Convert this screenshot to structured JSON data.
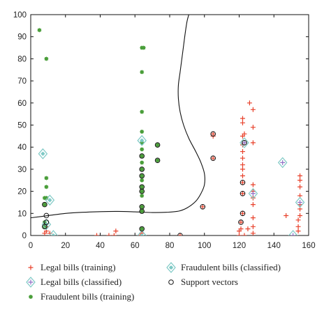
{
  "chart_data": {
    "type": "scatter",
    "title": "",
    "xlabel": "",
    "ylabel": "",
    "xlim": [
      0,
      160
    ],
    "ylim": [
      0,
      100
    ],
    "x_ticks": [
      0,
      20,
      40,
      60,
      80,
      100,
      120,
      140,
      160
    ],
    "y_ticks": [
      0,
      10,
      20,
      30,
      40,
      50,
      60,
      70,
      80,
      90,
      100
    ],
    "grid": false,
    "legend_placement": "bottom",
    "colors": {
      "legal_training": "#e8402a",
      "legal_classified": "#8f6fc6",
      "fraud_training": "#4a9e3a",
      "fraud_classified": "#7ec9c5",
      "support_vectors": "#111111",
      "boundary": "#111111"
    },
    "legend": [
      {
        "key": "legal_training",
        "marker": "plus",
        "label": "Legal bills (training)"
      },
      {
        "key": "legal_classified",
        "marker": "plus-diamond",
        "label": "Legal bills (classified)"
      },
      {
        "key": "fraud_training",
        "marker": "star",
        "label": "Fraudulent bills (training)"
      },
      {
        "key": "fraud_classified",
        "marker": "star-diamond",
        "label": "Fraudulent bills (classified)"
      },
      {
        "key": "support_vectors",
        "marker": "circle",
        "label": "Support vectors"
      }
    ],
    "series": [
      {
        "key": "legal_training",
        "marker": "plus",
        "points": [
          [
            8,
            1
          ],
          [
            9,
            2
          ],
          [
            9,
            4
          ],
          [
            11,
            1
          ],
          [
            38,
            0
          ],
          [
            45,
            0
          ],
          [
            48,
            0
          ],
          [
            49,
            2
          ],
          [
            63,
            0
          ],
          [
            64,
            1
          ],
          [
            86,
            0
          ],
          [
            99,
            13
          ],
          [
            105,
            35
          ],
          [
            105,
            45
          ],
          [
            105,
            46
          ],
          [
            120,
            0
          ],
          [
            120,
            2
          ],
          [
            121,
            3
          ],
          [
            121,
            6
          ],
          [
            122,
            10
          ],
          [
            122,
            19
          ],
          [
            122,
            24
          ],
          [
            122,
            27
          ],
          [
            122,
            30
          ],
          [
            122,
            32
          ],
          [
            122,
            35
          ],
          [
            122,
            38
          ],
          [
            122,
            41
          ],
          [
            122,
            45
          ],
          [
            122,
            51
          ],
          [
            122,
            53
          ],
          [
            123,
            0
          ],
          [
            123,
            46
          ],
          [
            125,
            3
          ],
          [
            126,
            60
          ],
          [
            128,
            1
          ],
          [
            128,
            4
          ],
          [
            128,
            8
          ],
          [
            128,
            14
          ],
          [
            128,
            17
          ],
          [
            128,
            20
          ],
          [
            128,
            23
          ],
          [
            128,
            42
          ],
          [
            128,
            49
          ],
          [
            128,
            57
          ],
          [
            147,
            9
          ],
          [
            154,
            2
          ],
          [
            154,
            4
          ],
          [
            154,
            7
          ],
          [
            155,
            9
          ],
          [
            155,
            12
          ],
          [
            155,
            14
          ],
          [
            155,
            18
          ],
          [
            155,
            22
          ],
          [
            155,
            25
          ],
          [
            155,
            27
          ]
        ]
      },
      {
        "key": "legal_classified",
        "marker": "plus-diamond",
        "points": [
          [
            123,
            42
          ],
          [
            128,
            19
          ],
          [
            145,
            33
          ],
          [
            151,
            0
          ],
          [
            155,
            15
          ]
        ]
      },
      {
        "key": "fraud_training",
        "marker": "star",
        "points": [
          [
            5,
            93
          ],
          [
            8,
            4
          ],
          [
            8,
            6
          ],
          [
            8,
            14
          ],
          [
            8,
            17
          ],
          [
            9,
            80
          ],
          [
            9,
            22
          ],
          [
            9,
            26
          ],
          [
            9,
            17
          ],
          [
            64,
            85
          ],
          [
            64,
            74
          ],
          [
            64,
            56
          ],
          [
            64,
            47
          ],
          [
            64,
            42
          ],
          [
            64,
            39
          ],
          [
            64,
            36
          ],
          [
            64,
            33
          ],
          [
            64,
            30
          ],
          [
            64,
            27
          ],
          [
            64,
            25
          ],
          [
            64,
            22
          ],
          [
            64,
            20
          ],
          [
            64,
            18
          ],
          [
            64,
            13
          ],
          [
            64,
            11
          ],
          [
            64,
            3
          ],
          [
            65,
            85
          ],
          [
            73,
            34
          ],
          [
            73,
            41
          ]
        ]
      },
      {
        "key": "fraud_classified",
        "marker": "star-diamond",
        "points": [
          [
            7,
            37
          ],
          [
            9,
            5
          ],
          [
            11,
            16
          ],
          [
            13,
            0
          ],
          [
            64,
            43
          ],
          [
            64,
            0
          ]
        ]
      },
      {
        "key": "support_vectors",
        "marker": "circle",
        "points": [
          [
            8,
            4
          ],
          [
            8,
            14
          ],
          [
            9,
            6
          ],
          [
            9,
            9
          ],
          [
            64,
            3
          ],
          [
            64,
            11
          ],
          [
            64,
            13
          ],
          [
            64,
            20
          ],
          [
            64,
            22
          ],
          [
            64,
            27
          ],
          [
            64,
            30
          ],
          [
            64,
            36
          ],
          [
            73,
            34
          ],
          [
            73,
            41
          ],
          [
            86,
            0
          ],
          [
            99,
            13
          ],
          [
            105,
            35
          ],
          [
            105,
            46
          ],
          [
            121,
            6
          ],
          [
            122,
            10
          ],
          [
            122,
            19
          ],
          [
            122,
            24
          ],
          [
            123,
            42
          ]
        ]
      }
    ],
    "decision_boundary": [
      [
        0,
        8
      ],
      [
        10,
        9
      ],
      [
        20,
        10
      ],
      [
        30,
        10.5
      ],
      [
        40,
        10.8
      ],
      [
        50,
        10.9
      ],
      [
        60,
        10.7
      ],
      [
        70,
        10.4
      ],
      [
        78,
        10.5
      ],
      [
        85,
        11
      ],
      [
        90,
        12.5
      ],
      [
        95,
        15.5
      ],
      [
        98,
        19
      ],
      [
        100,
        23
      ],
      [
        100,
        28
      ],
      [
        98,
        33
      ],
      [
        95,
        38
      ],
      [
        91,
        44
      ],
      [
        88,
        50
      ],
      [
        86,
        56
      ],
      [
        85,
        62
      ],
      [
        85,
        68
      ],
      [
        86,
        74
      ],
      [
        87,
        80
      ],
      [
        88,
        86
      ],
      [
        89,
        92
      ],
      [
        90,
        97
      ],
      [
        91,
        100
      ]
    ]
  }
}
